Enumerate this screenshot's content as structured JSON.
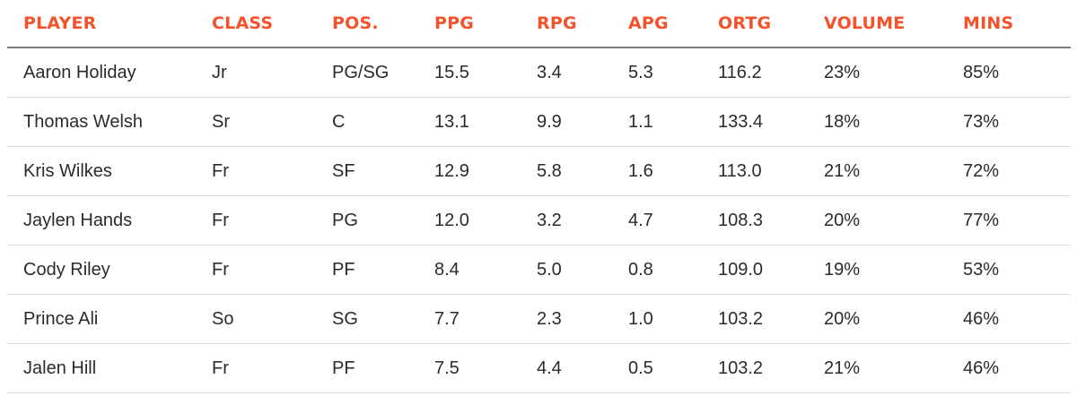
{
  "table": {
    "headers": [
      "PLAYER",
      "CLASS",
      "POS.",
      "PPG",
      "RPG",
      "APG",
      "ORTG",
      "VOLUME",
      "MINS"
    ],
    "rows": [
      [
        "Aaron Holiday",
        "Jr",
        "PG/SG",
        "15.5",
        "3.4",
        "5.3",
        "116.2",
        "23%",
        "85%"
      ],
      [
        "Thomas Welsh",
        "Sr",
        "C",
        "13.1",
        "9.9",
        "1.1",
        "133.4",
        "18%",
        "73%"
      ],
      [
        "Kris Wilkes",
        "Fr",
        "SF",
        "12.9",
        "5.8",
        "1.6",
        "113.0",
        "21%",
        "72%"
      ],
      [
        "Jaylen Hands",
        "Fr",
        "PG",
        "12.0",
        "3.2",
        "4.7",
        "108.3",
        "20%",
        "77%"
      ],
      [
        "Cody Riley",
        "Fr",
        "PF",
        "8.4",
        "5.0",
        "0.8",
        "109.0",
        "19%",
        "53%"
      ],
      [
        "Prince Ali",
        "So",
        "SG",
        "7.7",
        "2.3",
        "1.0",
        "103.2",
        "20%",
        "46%"
      ],
      [
        "Jalen Hill",
        "Fr",
        "PF",
        "7.5",
        "4.4",
        "0.5",
        "103.2",
        "21%",
        "46%"
      ]
    ]
  },
  "colors": {
    "header_text": "#f5512a",
    "body_text": "#2b2b2b",
    "header_rule": "#7a7a7a",
    "row_rule": "#dcdcdc"
  }
}
